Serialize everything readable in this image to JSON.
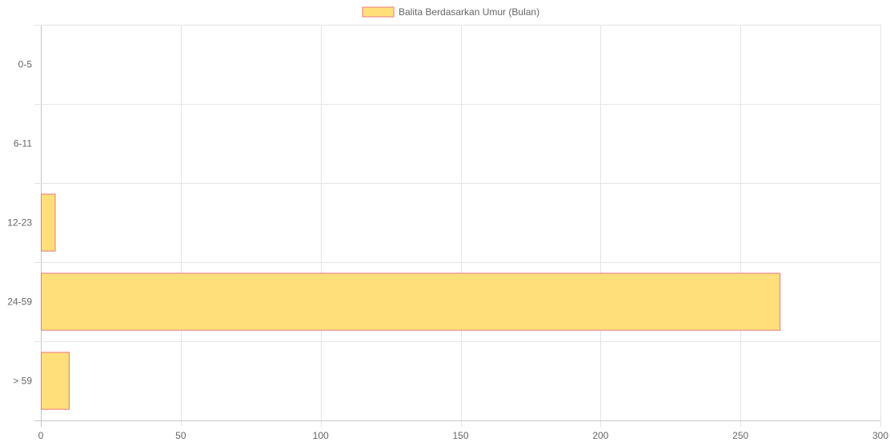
{
  "chart_data": {
    "type": "bar",
    "orientation": "horizontal",
    "categories": [
      "0-5",
      "6-11",
      "12-23",
      "24-59",
      "> 59"
    ],
    "series": [
      {
        "name": "Balita Berdasarkan Umur (Bulan)",
        "values": [
          0,
          0,
          5,
          264,
          10
        ]
      }
    ],
    "xlim": [
      0,
      300
    ],
    "xticks": [
      0,
      50,
      100,
      150,
      200,
      250,
      300
    ],
    "xtick_labels": [
      "0",
      "50",
      "100",
      "150",
      "200",
      "250",
      "300"
    ],
    "grid": true,
    "legend": "top-center",
    "colors": {
      "bar_fill": "#FFDF7A",
      "bar_border": "#E8787F",
      "grid": "#E5E5E5",
      "text": "#666666"
    }
  }
}
